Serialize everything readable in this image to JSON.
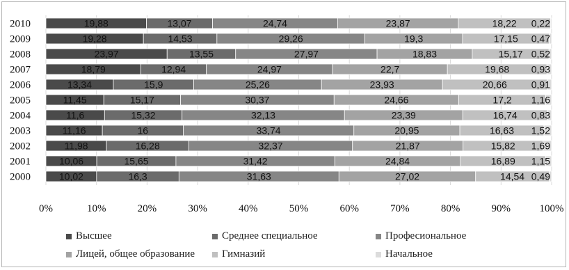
{
  "chart_data": {
    "type": "bar",
    "orientation": "horizontal",
    "stacked": "percent",
    "categories": [
      "2010",
      "2009",
      "2008",
      "2007",
      "2006",
      "2005",
      "2004",
      "2003",
      "2002",
      "2001",
      "2000"
    ],
    "series": [
      {
        "name": "Высшее",
        "color": "#4a4a4a",
        "values": [
          "19,88",
          "19,28",
          "23,97",
          "18,79",
          "13,34",
          "11,45",
          "11,6",
          "11,16",
          "11,98",
          "10,06",
          "10,02"
        ]
      },
      {
        "name": "Среднее специальное",
        "color": "#6b6b6b",
        "values": [
          "13,07",
          "14,53",
          "13,55",
          "12,94",
          "15,9",
          "15,17",
          "15,32",
          "16",
          "16,28",
          "15,65",
          "16,3"
        ]
      },
      {
        "name": "Професиональное",
        "color": "#868686",
        "values": [
          "24,74",
          "29,26",
          "27,97",
          "24,97",
          "25,26",
          "30,37",
          "32,13",
          "33,74",
          "32,37",
          "31,42",
          "31,63"
        ]
      },
      {
        "name": "Лицей, общее образование",
        "color": "#a3a3a3",
        "values": [
          "23,87",
          "19,3",
          "18,83",
          "22,7",
          "23,93",
          "24,66",
          "23,39",
          "20,95",
          "21,87",
          "24,84",
          "27,02"
        ]
      },
      {
        "name": "Гимназий",
        "color": "#c0c0c0",
        "values": [
          "18,22",
          "17,15",
          "15,17",
          "19,68",
          "20,66",
          "17,2",
          "16,74",
          "16,63",
          "15,82",
          "16,89",
          "14,54"
        ]
      },
      {
        "name": "Начальное",
        "color": "#dcdcdc",
        "values": [
          "0,22",
          "0,47",
          "0,52",
          "0,93",
          "0,91",
          "1,16",
          "0,83",
          "1,52",
          "1,69",
          "1,15",
          "0,49"
        ]
      }
    ],
    "x_ticks": [
      "0%",
      "10%",
      "20%",
      "30%",
      "40%",
      "50%",
      "60%",
      "70%",
      "80%",
      "90%",
      "100%"
    ],
    "xlim": [
      0,
      100
    ],
    "legend_position": "bottom",
    "grid": true
  }
}
